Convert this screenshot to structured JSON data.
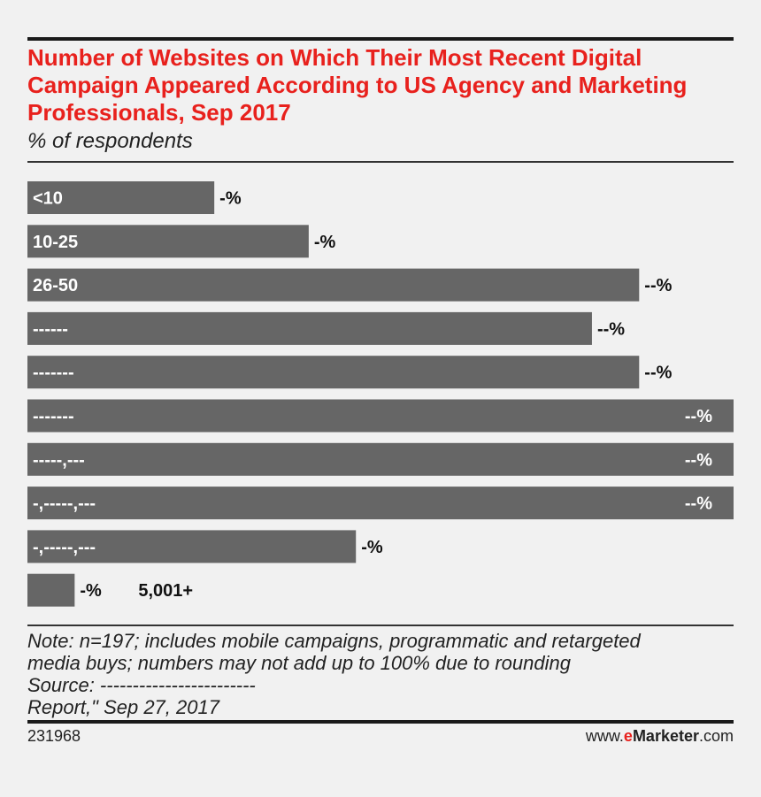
{
  "header": {
    "title": "Number of Websites on Which Their Most Recent Digital Campaign Appeared According to US Agency and Marketing Professionals, Sep 2017",
    "subtitle": "% of respondents"
  },
  "chart_data": {
    "type": "bar",
    "orientation": "horizontal",
    "title": "Number of Websites on Which Their Most Recent Digital Campaign Appeared According to US Agency and Marketing Professionals, Sep 2017",
    "subtitle": "% of respondents",
    "categories": [
      "<10",
      "10-25",
      "26-50",
      "------",
      "-------",
      "-------",
      "-----,---",
      "-,-----,---",
      "-,-----,---",
      "5,001+"
    ],
    "values": [
      9.5,
      14.3,
      31.1,
      28.7,
      31.1,
      35.9,
      35.9,
      35.9,
      16.7,
      2.4
    ],
    "value_labels": [
      "-%",
      "-%",
      "--%",
      "--%",
      "--%",
      "--%",
      "--%",
      "--%",
      "-%",
      "-%"
    ],
    "xlim": [
      0,
      35.9
    ],
    "bar_color": "#666666",
    "label_inside": [
      true,
      true,
      true,
      true,
      true,
      true,
      true,
      true,
      true,
      false
    ],
    "grid": false,
    "legend": "none"
  },
  "footer": {
    "note_lines": [
      "Note: n=197; includes mobile campaigns, programmatic and retargeted",
      "media buys; numbers may not add up to 100% due to rounding",
      "Source: ------------------------",
      "Report,\" Sep 27, 2017"
    ],
    "chart_id": "231968",
    "brand_prefix": "www.",
    "brand_e": "e",
    "brand_name": "Marketer",
    "brand_suffix": ".com"
  }
}
